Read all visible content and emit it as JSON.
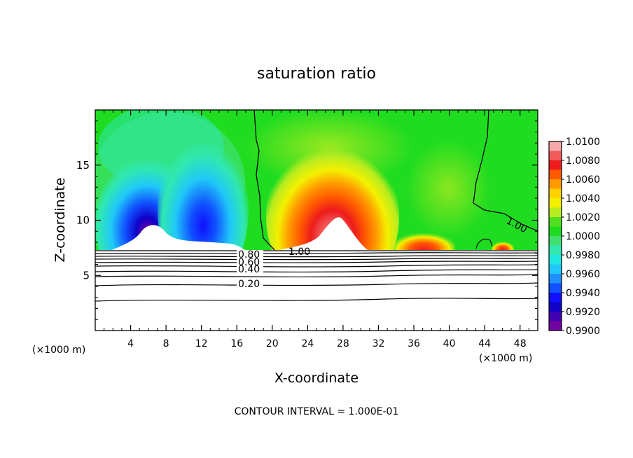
{
  "chart_data": {
    "type": "heatmap",
    "title": "saturation ratio",
    "xlabel": "X-coordinate",
    "ylabel": "Z-coordinate",
    "x_unit_left": "(×1000 m)",
    "x_unit_right": "(×1000 m)",
    "footer": "CONTOUR INTERVAL = 1.000E-01",
    "xlim": [
      0,
      50
    ],
    "ylim": [
      0,
      20
    ],
    "x_ticks": [
      4,
      8,
      12,
      16,
      20,
      24,
      28,
      32,
      36,
      40,
      44,
      48
    ],
    "y_ticks": [
      5,
      10,
      15
    ],
    "x_tick_labels": [
      "4",
      "8",
      "12",
      "16",
      "20",
      "24",
      "28",
      "32",
      "36",
      "40",
      "44",
      "48"
    ],
    "y_tick_labels": [
      "5",
      "10",
      "15"
    ],
    "colorbar": {
      "min": 0.99,
      "max": 1.01,
      "labels": [
        "1.0100",
        "1.0080",
        "1.0060",
        "1.0040",
        "1.0020",
        "1.0000",
        "0.9980",
        "0.9960",
        "0.9940",
        "0.9920",
        "0.9900"
      ],
      "colors": [
        "#f7a8a8",
        "#f25a5a",
        "#ee1c1c",
        "#ff5a00",
        "#ff9a00",
        "#ffd200",
        "#f4f000",
        "#b8ec20",
        "#50e020",
        "#20dc20",
        "#40e070",
        "#30e8b0",
        "#20e8e0",
        "#20c8f8",
        "#2090ff",
        "#1050ff",
        "#1010ff",
        "#1000c8",
        "#4000b0",
        "#7000a0"
      ]
    },
    "contour_labels": [
      "0.80",
      "0.60",
      "0.40",
      "0.20",
      "1.00",
      "1.00"
    ],
    "regions": [
      {
        "name": "dry-plume-left",
        "x": 6.5,
        "z": 10.5,
        "value": 0.991
      },
      {
        "name": "dry-plume-right",
        "x": 12,
        "z": 12,
        "value": 0.994
      },
      {
        "name": "moist-plume",
        "x": 27.5,
        "z": 11,
        "value": 1.009
      },
      {
        "name": "moist-patch",
        "x": 37,
        "z": 7.6,
        "value": 1.006
      },
      {
        "name": "background",
        "x": 40,
        "z": 16,
        "value": 1.0
      }
    ]
  }
}
